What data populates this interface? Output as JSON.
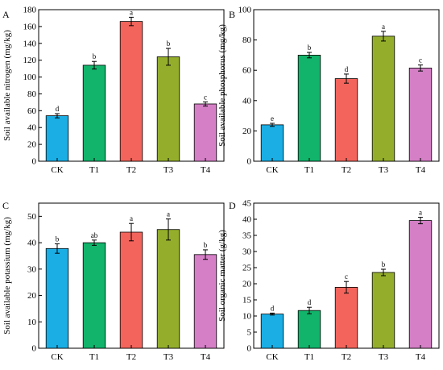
{
  "chart_data": [
    {
      "type": "bar",
      "panel": "A",
      "categories": [
        "CK",
        "T1",
        "T2",
        "T3",
        "T4"
      ],
      "values": [
        54,
        114,
        166,
        124,
        68
      ],
      "errors": [
        2.5,
        4.5,
        5,
        10,
        2.5
      ],
      "significance": [
        "d",
        "b",
        "a",
        "b",
        "c"
      ],
      "colors": [
        "#1aaee5",
        "#11b46a",
        "#f2645c",
        "#94ae2c",
        "#d47fc6"
      ],
      "ylabel": "Soil available nitrogen (mg/kg)",
      "xlabel": "",
      "ylim": [
        0,
        180
      ],
      "yticks": [
        0,
        20,
        40,
        60,
        80,
        100,
        120,
        140,
        160,
        180
      ]
    },
    {
      "type": "bar",
      "panel": "B",
      "categories": [
        "CK",
        "T1",
        "T2",
        "T3",
        "T4"
      ],
      "values": [
        24,
        70,
        54.5,
        82.5,
        61.5
      ],
      "errors": [
        1,
        1.8,
        3,
        3.2,
        2
      ],
      "significance": [
        "e",
        "b",
        "d",
        "a",
        "c"
      ],
      "colors": [
        "#1aaee5",
        "#11b46a",
        "#f2645c",
        "#94ae2c",
        "#d47fc6"
      ],
      "ylabel": "Soil available phosphorus (mg/kg)",
      "xlabel": "",
      "ylim": [
        0,
        100
      ],
      "yticks": [
        0,
        20,
        40,
        60,
        80,
        100
      ]
    },
    {
      "type": "bar",
      "panel": "C",
      "categories": [
        "CK",
        "T1",
        "T2",
        "T3",
        "T4"
      ],
      "values": [
        37.8,
        40,
        44,
        45,
        35.5
      ],
      "errors": [
        1.8,
        1,
        3.3,
        4,
        1.8
      ],
      "significance": [
        "b",
        "ab",
        "a",
        "a",
        "b"
      ],
      "colors": [
        "#1aaee5",
        "#11b46a",
        "#f2645c",
        "#94ae2c",
        "#d47fc6"
      ],
      "ylabel": "Soil available potassium (mg/kg)",
      "xlabel": "",
      "ylim": [
        0,
        55
      ],
      "yticks": [
        0,
        10,
        20,
        30,
        40,
        50
      ]
    },
    {
      "type": "bar",
      "panel": "D",
      "categories": [
        "CK",
        "T1",
        "T2",
        "T3",
        "T4"
      ],
      "values": [
        10.6,
        11.7,
        18.9,
        23.5,
        39.6
      ],
      "errors": [
        0.3,
        1,
        1.8,
        1,
        1
      ],
      "significance": [
        "d",
        "d",
        "c",
        "b",
        "a"
      ],
      "colors": [
        "#1aaee5",
        "#11b46a",
        "#f2645c",
        "#94ae2c",
        "#d47fc6"
      ],
      "ylabel": "Soil organic matter (g/kg)",
      "xlabel": "",
      "ylim": [
        0,
        45
      ],
      "yticks": [
        0,
        5,
        10,
        15,
        20,
        25,
        30,
        35,
        40,
        45
      ]
    }
  ]
}
